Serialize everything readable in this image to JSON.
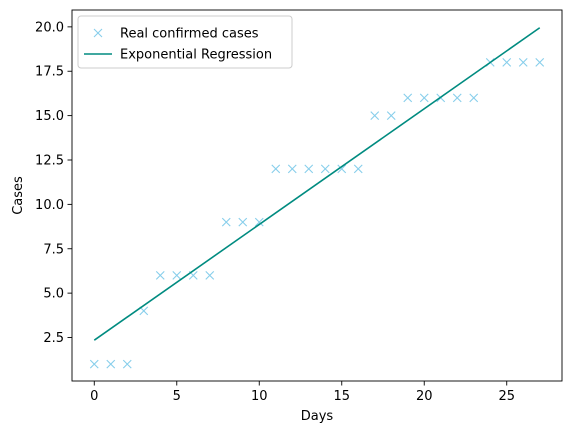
{
  "chart_data": {
    "type": "scatter",
    "xlabel": "Days",
    "ylabel": "Cases",
    "xlim": [
      -1.35,
      28.35
    ],
    "ylim": [
      0.05,
      20.95
    ],
    "x_ticks": [
      0,
      5,
      10,
      15,
      20,
      25
    ],
    "x_tick_labels": [
      "0",
      "5",
      "10",
      "15",
      "20",
      "25"
    ],
    "y_ticks": [
      2.5,
      5.0,
      7.5,
      10.0,
      12.5,
      15.0,
      17.5,
      20.0
    ],
    "y_tick_labels": [
      "2.5",
      "5.0",
      "7.5",
      "10.0",
      "12.5",
      "15.0",
      "17.5",
      "20.0"
    ],
    "grid": false,
    "legend_position": "upper-left",
    "series": [
      {
        "name": "Real confirmed cases",
        "kind": "markers",
        "marker": "x",
        "color": "#87CEEB",
        "x": [
          0,
          1,
          2,
          3,
          4,
          5,
          6,
          7,
          8,
          9,
          10,
          11,
          12,
          13,
          14,
          15,
          16,
          17,
          18,
          19,
          20,
          21,
          22,
          23,
          24,
          25,
          26,
          27
        ],
        "y": [
          1,
          1,
          1,
          4,
          6,
          6,
          6,
          6,
          9,
          9,
          9,
          12,
          12,
          12,
          12,
          12,
          12,
          15,
          15,
          16,
          16,
          16,
          16,
          16,
          18,
          18,
          18,
          18
        ]
      },
      {
        "name": "Exponential Regression",
        "kind": "line",
        "color": "#008B80",
        "x": [
          0,
          27
        ],
        "y": [
          2.35,
          19.95
        ]
      }
    ]
  }
}
